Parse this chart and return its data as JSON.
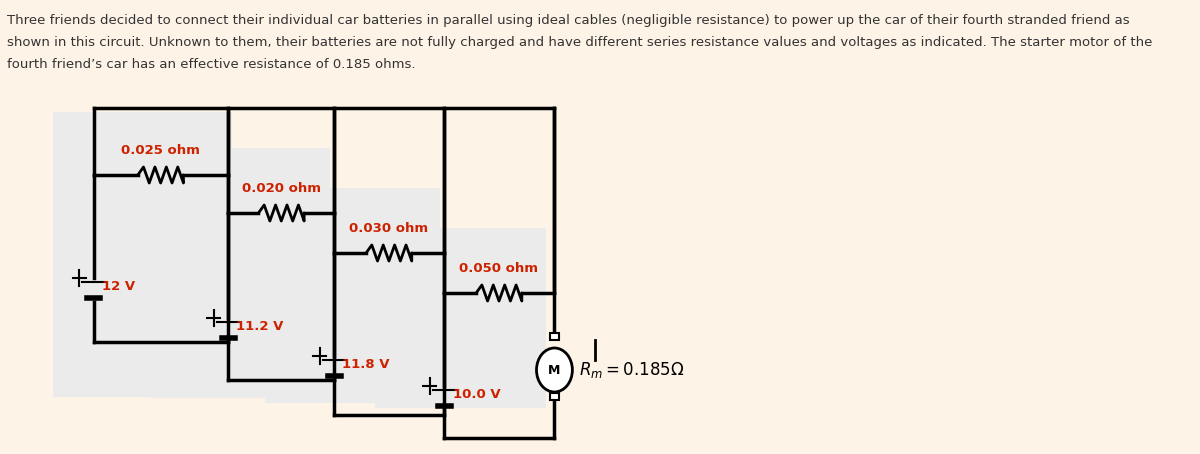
{
  "bg_color": "#fdf3e7",
  "circuit_bg": "#ffffff",
  "panel_colors": [
    "#e8e8e8",
    "#ececec",
    "#f0f0f0",
    "#f4f4f4"
  ],
  "text_color": "#333333",
  "red_color": "#cc2200",
  "description_lines": [
    "Three friends decided to connect their individual car batteries in parallel using ideal cables (negligible resistance) to power up the car of their fourth stranded friend as",
    "shown in this circuit. Unknown to them, their batteries are not fully charged and have different series resistance values and voltages as indicated. The starter motor of the",
    "fourth friend’s car has an effective resistance of 0.185 ohms."
  ],
  "res_labels": [
    "0.025 ohm",
    "0.020 ohm",
    "0.030 ohm",
    "0.050 ohm"
  ],
  "bat_labels": [
    "12 V",
    "11.2 V",
    "11.8 V",
    "10.0 V"
  ],
  "motor_label": "$R_m = 0.185\\Omega$"
}
